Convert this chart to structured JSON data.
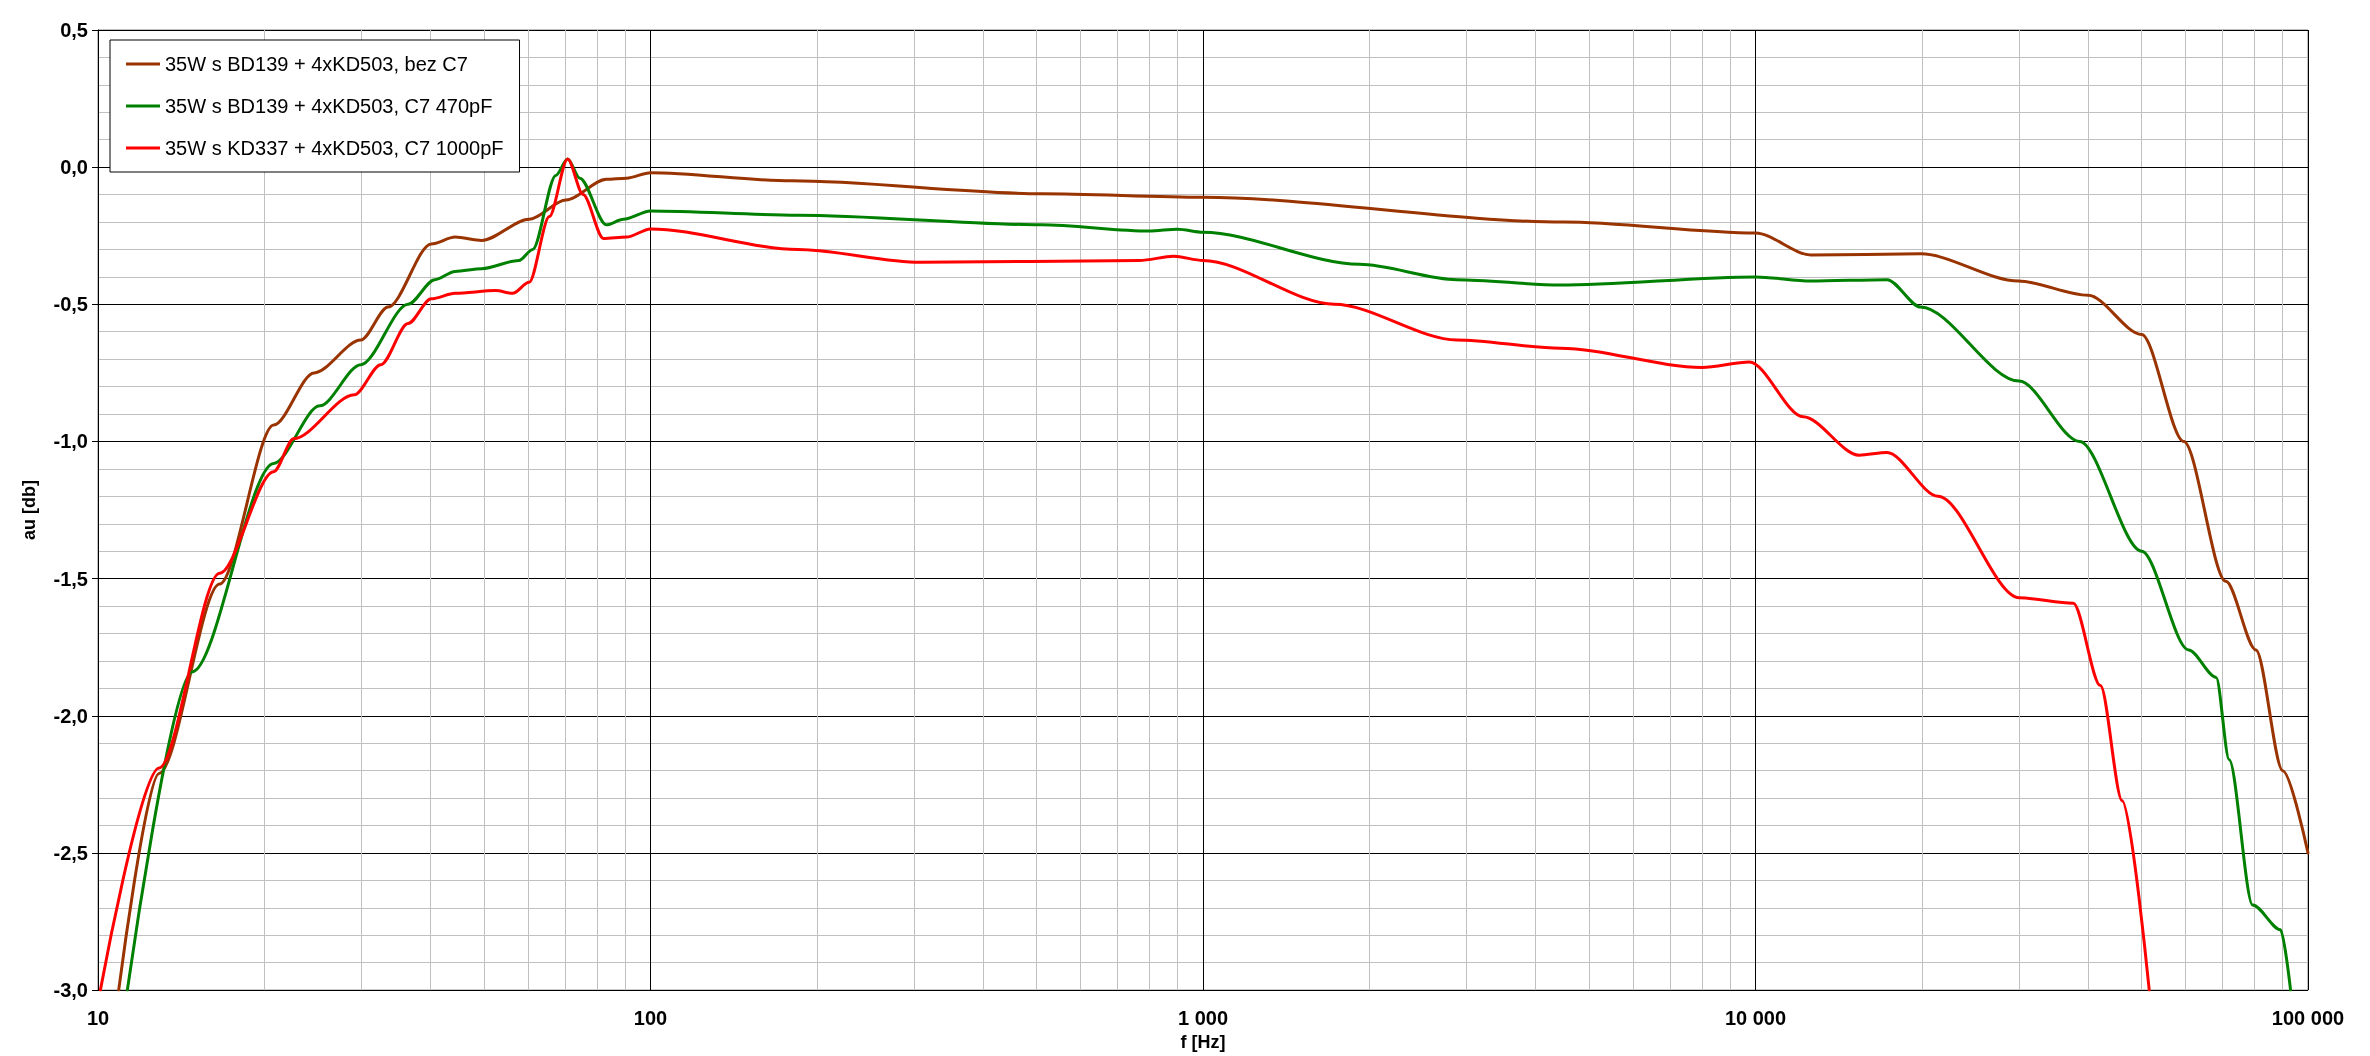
{
  "chart_data": {
    "type": "line",
    "xlabel": "f [Hz]",
    "ylabel": "au [db]",
    "log": "x",
    "grid": true,
    "legend": "top left",
    "marker": "none",
    "line_style": "solid",
    "xlim": [
      10,
      100000
    ],
    "ylim": [
      -3,
      0.5
    ],
    "xticks": [
      10,
      100,
      {
        "value": 1000,
        "label": "1 000"
      },
      {
        "value": 10000,
        "label": "10 000"
      },
      {
        "value": 100000,
        "label": "100 000"
      }
    ],
    "yticks": [
      {
        "value": -3,
        "label": "-3,0"
      },
      {
        "value": -2.5,
        "label": "-2,5"
      },
      {
        "value": -2,
        "label": "-2,0"
      },
      {
        "value": -1.5,
        "label": "-1,5"
      },
      {
        "value": -1,
        "label": "-1,0"
      },
      {
        "value": -0.5,
        "label": "-0,5"
      },
      {
        "value": 0,
        "label": "0,0"
      },
      {
        "value": 0.5,
        "label": "0,5"
      }
    ],
    "series": [
      {
        "name": "35W s BD139 + 4xKD503, bez C7",
        "color": "#993300",
        "x": [
          10.9,
          12.9,
          16.6,
          20.8,
          24.6,
          29.9,
          33.5,
          40.1,
          44.3,
          49.5,
          60.3,
          70.3,
          83.2,
          90.5,
          100,
          180,
          510,
          1000,
          4490,
          10000,
          12600,
          19900,
          29900,
          40000,
          50000,
          59600,
          71000,
          80500,
          90000,
          100000
        ],
        "values": [
          -3.0,
          -2.21,
          -1.52,
          -0.94,
          -0.75,
          -0.63,
          -0.51,
          -0.28,
          -0.255,
          -0.267,
          -0.19,
          -0.12,
          -0.044,
          -0.04,
          -0.02,
          -0.05,
          -0.097,
          -0.11,
          -0.2,
          -0.24,
          -0.32,
          -0.316,
          -0.415,
          -0.467,
          -0.61,
          -1.0,
          -1.51,
          -1.76,
          -2.2,
          -2.5
        ]
      },
      {
        "name": "35W s BD139 + 4xKD503, C7 470pF",
        "color": "#008000",
        "x": [
          11.3,
          14.8,
          20.8,
          25.2,
          29.9,
          36.4,
          40.7,
          44.3,
          49.5,
          57.8,
          61.2,
          67.4,
          70.8,
          74.5,
          83.2,
          89.3,
          100,
          185,
          510,
          800,
          900,
          1000,
          1920,
          2880,
          4430,
          10000,
          12600,
          17300,
          19900,
          30000,
          38600,
          50000,
          60800,
          68200,
          72000,
          79400,
          89200,
          93000
        ],
        "values": [
          -3.0,
          -1.84,
          -1.08,
          -0.87,
          -0.72,
          -0.5,
          -0.41,
          -0.38,
          -0.37,
          -0.34,
          -0.3,
          -0.03,
          0.03,
          -0.04,
          -0.21,
          -0.19,
          -0.16,
          -0.175,
          -0.21,
          -0.233,
          -0.226,
          -0.237,
          -0.354,
          -0.41,
          -0.43,
          -0.4,
          -0.415,
          -0.41,
          -0.51,
          -0.78,
          -1.0,
          -1.4,
          -1.76,
          -1.86,
          -2.16,
          -2.69,
          -2.78,
          -3.0
        ]
      },
      {
        "name": "35W s KD337 + 4xKD503, C7 1000pF",
        "color": "#ff0000",
        "x": [
          10.1,
          12.9,
          16.6,
          20.8,
          22.6,
          29.1,
          32.5,
          36.4,
          40.1,
          44.3,
          52.5,
          56.3,
          60.3,
          65.6,
          70.8,
          75.5,
          82.2,
          90.5,
          100,
          185,
          308,
          768,
          885,
          1000,
          1730,
          2880,
          4430,
          8000,
          9750,
          12200,
          15400,
          17300,
          21400,
          30000,
          37600,
          42100,
          46100,
          51600
        ],
        "values": [
          -3.0,
          -2.19,
          -1.48,
          -1.11,
          -0.99,
          -0.83,
          -0.72,
          -0.57,
          -0.48,
          -0.46,
          -0.45,
          -0.46,
          -0.42,
          -0.18,
          0.03,
          -0.1,
          -0.26,
          -0.255,
          -0.225,
          -0.3,
          -0.347,
          -0.34,
          -0.325,
          -0.34,
          -0.5,
          -0.63,
          -0.66,
          -0.73,
          -0.71,
          -0.91,
          -1.05,
          -1.04,
          -1.2,
          -1.57,
          -1.59,
          -1.89,
          -2.31,
          -3.0
        ]
      }
    ]
  }
}
